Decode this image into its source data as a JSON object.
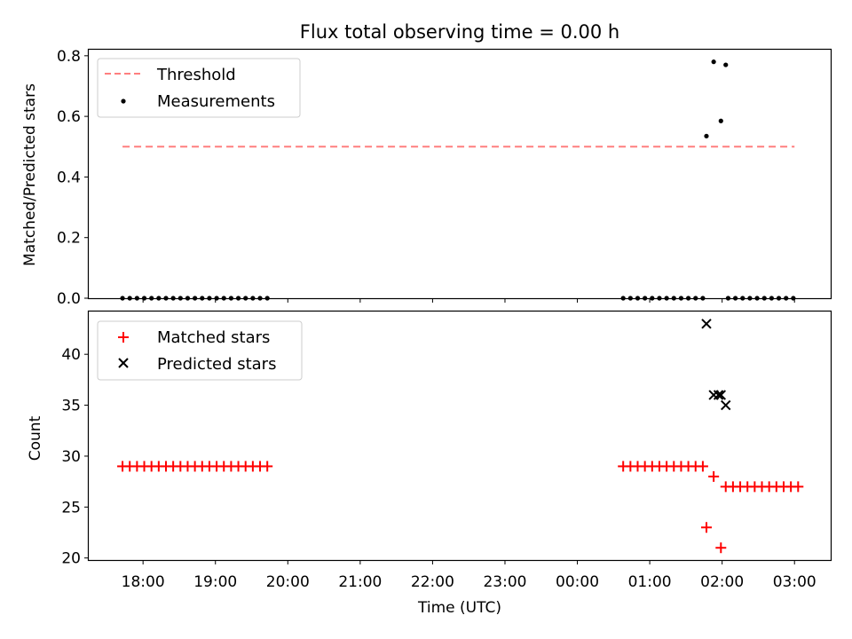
{
  "chart_data": [
    {
      "type": "scatter",
      "title": "Flux total observing time = 0.00 h",
      "ylabel": "Matched/Predicted stars",
      "xlabel": "",
      "ylim": [
        0,
        0.82
      ],
      "yticks": [
        0.0,
        0.2,
        0.4,
        0.6,
        0.8
      ],
      "ytick_labels": [
        "0.0",
        "0.2",
        "0.4",
        "0.6",
        "0.8"
      ],
      "legend": {
        "placement": "upper-left",
        "entries": [
          "Threshold",
          "Measurements"
        ]
      },
      "series": [
        {
          "name": "Threshold",
          "kind": "dashed-line",
          "color": "#ff7f7f",
          "x": [
            "17:43",
            "03:00"
          ],
          "y": [
            0.5,
            0.5
          ]
        },
        {
          "name": "Measurements",
          "kind": "dots",
          "color": "#000000",
          "x": [
            "17:43",
            "17:49",
            "17:55",
            "18:01",
            "18:07",
            "18:13",
            "18:19",
            "18:25",
            "18:31",
            "18:37",
            "18:43",
            "18:49",
            "18:55",
            "19:01",
            "19:07",
            "19:13",
            "19:19",
            "19:25",
            "19:31",
            "19:37",
            "19:43",
            "00:38",
            "00:44",
            "00:50",
            "00:56",
            "01:02",
            "01:08",
            "01:14",
            "01:20",
            "01:26",
            "01:32",
            "01:38",
            "01:44",
            "01:47",
            "01:53",
            "01:59",
            "02:03",
            "02:05",
            "02:11",
            "02:17",
            "02:23",
            "02:29",
            "02:35",
            "02:41",
            "02:47",
            "02:53",
            "02:59"
          ],
          "y": [
            0,
            0,
            0,
            0,
            0,
            0,
            0,
            0,
            0,
            0,
            0,
            0,
            0,
            0,
            0,
            0,
            0,
            0,
            0,
            0,
            0,
            0,
            0,
            0,
            0,
            0,
            0,
            0,
            0,
            0,
            0,
            0,
            0,
            0.535,
            0.78,
            0.585,
            0.77,
            0,
            0,
            0,
            0,
            0,
            0,
            0,
            0,
            0,
            0
          ]
        }
      ]
    },
    {
      "type": "scatter",
      "title": "",
      "ylabel": "Count",
      "xlabel": "Time (UTC)",
      "ylim": [
        19.8,
        44.2
      ],
      "yticks": [
        20,
        25,
        30,
        35,
        40
      ],
      "ytick_labels": [
        "20",
        "25",
        "30",
        "35",
        "40"
      ],
      "xlim": [
        "17:15",
        "03:30"
      ],
      "xticks": [
        "18:00",
        "19:00",
        "20:00",
        "21:00",
        "22:00",
        "23:00",
        "00:00",
        "01:00",
        "02:00",
        "03:00"
      ],
      "legend": {
        "placement": "upper-left",
        "entries": [
          "Matched stars",
          "Predicted stars"
        ]
      },
      "series": [
        {
          "name": "Matched stars",
          "marker": "plus",
          "color": "#ff0000",
          "x": [
            "17:43",
            "17:49",
            "17:55",
            "18:01",
            "18:07",
            "18:13",
            "18:19",
            "18:25",
            "18:31",
            "18:37",
            "18:43",
            "18:49",
            "18:55",
            "19:01",
            "19:07",
            "19:13",
            "19:19",
            "19:25",
            "19:31",
            "19:37",
            "19:43",
            "00:38",
            "00:44",
            "00:50",
            "00:56",
            "01:02",
            "01:08",
            "01:14",
            "01:20",
            "01:26",
            "01:32",
            "01:38",
            "01:44",
            "01:47",
            "01:53",
            "01:59",
            "02:03",
            "02:09",
            "02:15",
            "02:21",
            "02:27",
            "02:33",
            "02:39",
            "02:45",
            "02:51",
            "02:57",
            "03:03"
          ],
          "y": [
            29,
            29,
            29,
            29,
            29,
            29,
            29,
            29,
            29,
            29,
            29,
            29,
            29,
            29,
            29,
            29,
            29,
            29,
            29,
            29,
            29,
            29,
            29,
            29,
            29,
            29,
            29,
            29,
            29,
            29,
            29,
            29,
            29,
            23,
            28,
            21,
            27,
            27,
            27,
            27,
            27,
            27,
            27,
            27,
            27,
            27,
            27
          ]
        },
        {
          "name": "Predicted stars",
          "marker": "x",
          "color": "#000000",
          "x": [
            "01:47",
            "01:53",
            "01:57",
            "01:59",
            "02:03"
          ],
          "y": [
            43,
            36,
            36,
            36,
            35
          ]
        }
      ]
    }
  ]
}
